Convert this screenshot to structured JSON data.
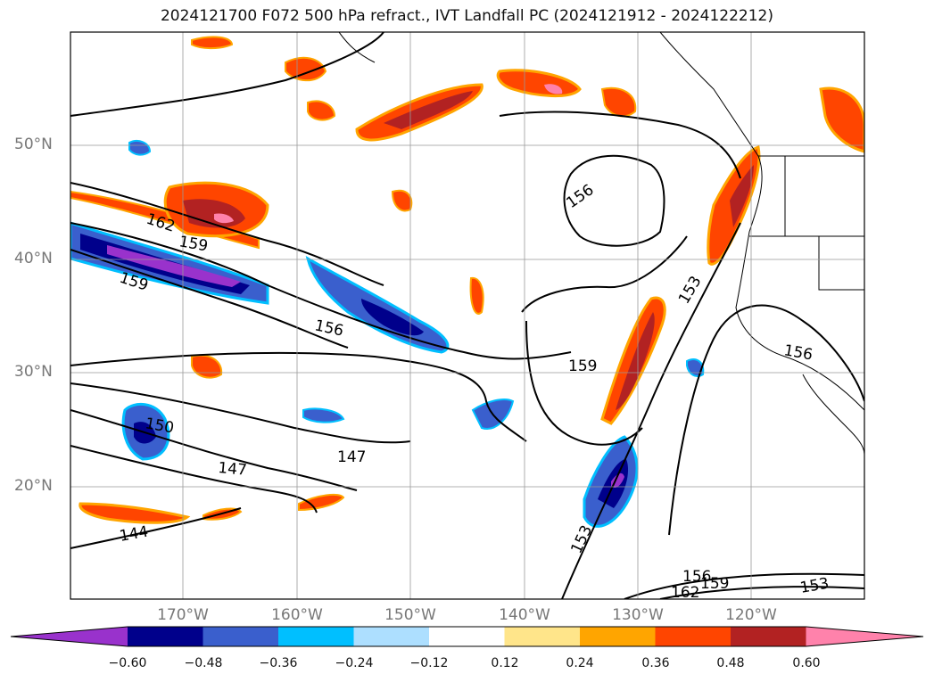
{
  "title": "2024121700 F072 500 hPa refract., IVT Landfall PC (2024121912 - 2024122212)",
  "lat_labels": [
    "50°N",
    "40°N",
    "30°N",
    "20°N"
  ],
  "lon_labels": [
    "170°W",
    "160°W",
    "150°W",
    "140°W",
    "130°W",
    "120°W"
  ],
  "contour_labels": [
    "162",
    "159",
    "159",
    "156",
    "150",
    "147",
    "147",
    "144",
    "156",
    "153",
    "159",
    "156",
    "153",
    "156",
    "159",
    "162",
    "153"
  ],
  "colorbar": {
    "ticks": [
      "−0.60",
      "−0.48",
      "−0.36",
      "−0.24",
      "−0.12",
      "0.12",
      "0.24",
      "0.36",
      "0.48",
      "0.60"
    ],
    "colors": [
      "#9932CC",
      "#00008B",
      "#3A5FCD",
      "#00BFFF",
      "#ADDFFF",
      "#FFFFFF",
      "#FFE58A",
      "#FFA500",
      "#FF4500",
      "#B22222",
      "#FF82AB"
    ]
  }
}
